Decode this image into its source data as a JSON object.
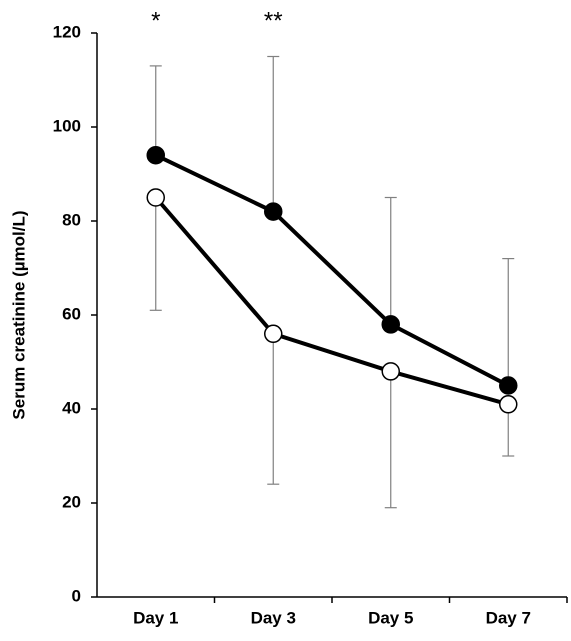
{
  "chart_data": {
    "type": "line",
    "y_label": "Serum creatinine (µmol/L)",
    "categories": [
      "Day 1",
      "Day 3",
      "Day 5",
      "Day 7"
    ],
    "series": [
      {
        "color": "#000000",
        "marker_fill": "#000000",
        "values": [
          94,
          82,
          58,
          45
        ],
        "errors": [
          19,
          33,
          27,
          27
        ],
        "error_direction": "up"
      },
      {
        "color": "#000000",
        "marker_fill": "#ffffff",
        "values": [
          85,
          56,
          48,
          41
        ],
        "errors": [
          24,
          32,
          29,
          11
        ],
        "error_direction": "down"
      }
    ],
    "annotations": [
      {
        "text": "*",
        "x": "Day 1"
      },
      {
        "text": "**",
        "x": "Day 3"
      }
    ],
    "ylim": [
      0,
      120
    ],
    "yticks": [
      0,
      20,
      40,
      60,
      80,
      100,
      120
    ],
    "grid": false
  }
}
